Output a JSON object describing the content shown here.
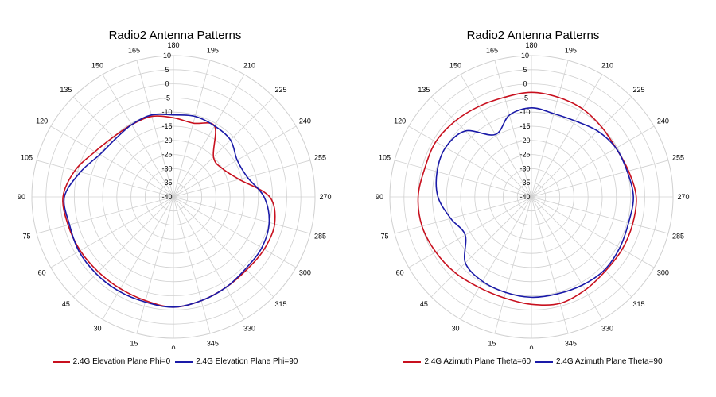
{
  "colors": {
    "series1": "#c8101e",
    "series2": "#1a1aa8",
    "grid": "#d0d0d0"
  },
  "chart_data": [
    {
      "type": "polar",
      "title": "Radio2 Antenna Patterns",
      "r_ticks": [
        "10",
        "5",
        "0",
        "-5",
        "-10",
        "-15",
        "-20",
        "-25",
        "-30",
        "-35",
        "-40"
      ],
      "angle_ticks": [
        "0",
        "15",
        "30",
        "45",
        "60",
        "75",
        "90",
        "105",
        "120",
        "135",
        "150",
        "165",
        "180",
        "195",
        "210",
        "225",
        "240",
        "255",
        "270",
        "285",
        "300",
        "315",
        "330",
        "345"
      ],
      "rlim": [
        -40,
        10
      ],
      "angles": [
        0,
        15,
        30,
        45,
        60,
        75,
        90,
        105,
        120,
        135,
        150,
        165,
        180,
        195,
        210,
        225,
        240,
        255,
        270,
        285,
        300,
        315,
        330,
        345
      ],
      "series": [
        {
          "name": "2.4G Elevation Plane Phi=0",
          "r": [
            -1,
            -2,
            -2.5,
            -2.5,
            -2,
            -1.5,
            -1,
            -4,
            -8,
            -10,
            -10.5,
            -10.5,
            -12,
            -13,
            -11,
            -20,
            -20,
            -16,
            -6,
            -3,
            -3,
            -3.5,
            -3,
            -2
          ]
        },
        {
          "name": "2.4G Elevation Plane Phi=90",
          "r": [
            -1,
            -1.5,
            -1.5,
            -1.5,
            -1.5,
            -2,
            -1.5,
            -6,
            -10,
            -11,
            -10.5,
            -10,
            -11,
            -10.5,
            -11,
            -11.5,
            -14,
            -13,
            -8,
            -5,
            -4,
            -4,
            -3,
            -2
          ]
        }
      ]
    },
    {
      "type": "polar",
      "title": "Radio2 Antenna Patterns",
      "r_ticks": [
        "10",
        "5",
        "0",
        "-5",
        "-10",
        "-15",
        "-20",
        "-25",
        "-30",
        "-35",
        "-40"
      ],
      "angle_ticks": [
        "0",
        "15",
        "30",
        "45",
        "60",
        "75",
        "90",
        "105",
        "120",
        "135",
        "150",
        "165",
        "180",
        "195",
        "210",
        "225",
        "240",
        "255",
        "270",
        "285",
        "300",
        "315",
        "330",
        "345"
      ],
      "rlim": [
        -40,
        10
      ],
      "angles": [
        0,
        15,
        30,
        45,
        60,
        75,
        90,
        105,
        120,
        135,
        150,
        165,
        180,
        195,
        210,
        225,
        240,
        255,
        270,
        285,
        300,
        315,
        330,
        345
      ],
      "series": [
        {
          "name": "2.4G Azimuth Plane Theta=60",
          "r": [
            -2,
            -3,
            -3,
            -2,
            -1,
            0,
            0,
            -1,
            -1,
            -2,
            -3,
            -3.5,
            -3,
            -3.5,
            -4,
            -5,
            -5.5,
            -4.5,
            -3,
            -3,
            -3,
            -3,
            -2,
            -1
          ]
        },
        {
          "name": "2.4G Azimuth Plane Theta=90",
          "r": [
            -4.5,
            -5,
            -5.5,
            -7,
            -13,
            -10.5,
            -7,
            -5.5,
            -5,
            -7,
            -14.5,
            -10,
            -8.5,
            -9.5,
            -9,
            -7,
            -5.5,
            -5,
            -4,
            -4.5,
            -4,
            -3.5,
            -4,
            -4.5
          ]
        }
      ]
    }
  ]
}
